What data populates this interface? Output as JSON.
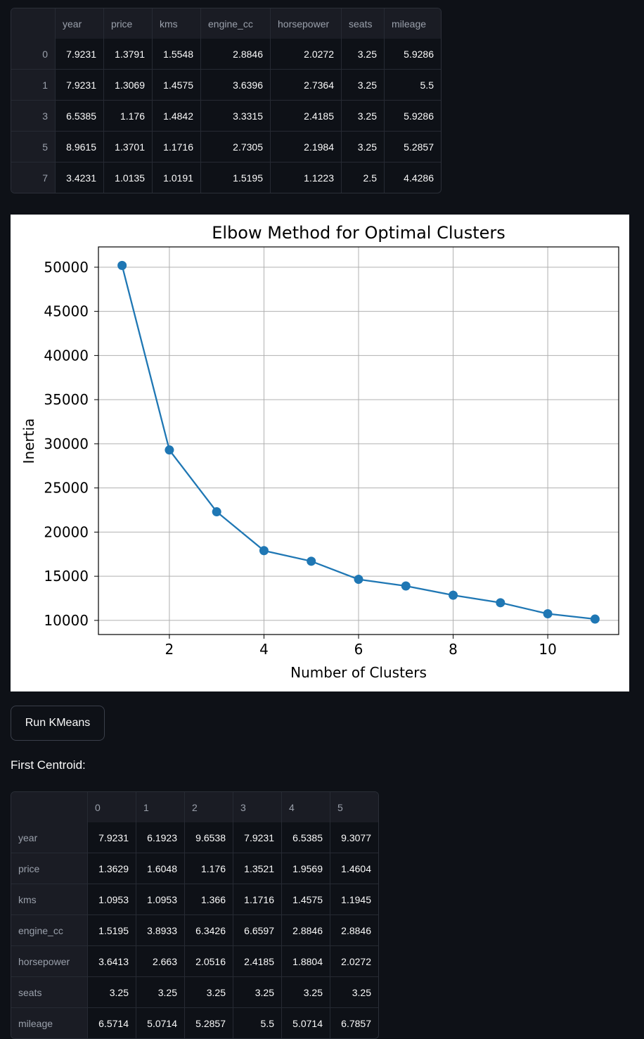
{
  "top_table": {
    "columns": [
      "",
      "year",
      "price",
      "kms",
      "engine_cc",
      "horsepower",
      "seats",
      "mileage"
    ],
    "rows": [
      {
        "index": "0",
        "cells": [
          "7.9231",
          "1.3791",
          "1.5548",
          "2.8846",
          "2.0272",
          "3.25",
          "5.9286"
        ]
      },
      {
        "index": "1",
        "cells": [
          "7.9231",
          "1.3069",
          "1.4575",
          "3.6396",
          "2.7364",
          "3.25",
          "5.5"
        ]
      },
      {
        "index": "3",
        "cells": [
          "6.5385",
          "1.176",
          "1.4842",
          "3.3315",
          "2.4185",
          "3.25",
          "5.9286"
        ]
      },
      {
        "index": "5",
        "cells": [
          "8.9615",
          "1.3701",
          "1.1716",
          "2.7305",
          "2.1984",
          "3.25",
          "5.2857"
        ]
      },
      {
        "index": "7",
        "cells": [
          "3.4231",
          "1.0135",
          "1.0191",
          "1.5195",
          "1.1223",
          "2.5",
          "4.4286"
        ]
      }
    ]
  },
  "chart_data": {
    "type": "line",
    "title": "Elbow Method for Optimal Clusters",
    "xlabel": "Number of Clusters",
    "ylabel": "Inertia",
    "x": [
      1,
      2,
      3,
      4,
      5,
      6,
      7,
      8,
      9,
      10,
      11
    ],
    "series": [
      {
        "values": [
          50200,
          29300,
          22300,
          17900,
          16700,
          14650,
          13900,
          12850,
          12000,
          10750,
          10150
        ]
      }
    ],
    "xlim": [
      0.5,
      11.5
    ],
    "ylim": [
      8400,
      52300
    ],
    "xticks": [
      2,
      4,
      6,
      8,
      10
    ],
    "yticks": [
      10000,
      15000,
      20000,
      25000,
      30000,
      35000,
      40000,
      45000,
      50000
    ],
    "grid": true,
    "line_color": "#1f77b4"
  },
  "run_button": {
    "label": "Run KMeans"
  },
  "centroid_label": "First Centroid:",
  "centroid_table": {
    "columns": [
      "",
      "0",
      "1",
      "2",
      "3",
      "4",
      "5"
    ],
    "rows": [
      {
        "index": "year",
        "cells": [
          "7.9231",
          "6.1923",
          "9.6538",
          "7.9231",
          "6.5385",
          "9.3077"
        ]
      },
      {
        "index": "price",
        "cells": [
          "1.3629",
          "1.6048",
          "1.176",
          "1.3521",
          "1.9569",
          "1.4604"
        ]
      },
      {
        "index": "kms",
        "cells": [
          "1.0953",
          "1.0953",
          "1.366",
          "1.1716",
          "1.4575",
          "1.1945"
        ]
      },
      {
        "index": "engine_cc",
        "cells": [
          "1.5195",
          "3.8933",
          "6.3426",
          "6.6597",
          "2.8846",
          "2.8846"
        ]
      },
      {
        "index": "horsepower",
        "cells": [
          "3.6413",
          "2.663",
          "2.0516",
          "2.4185",
          "1.8804",
          "2.0272"
        ]
      },
      {
        "index": "seats",
        "cells": [
          "3.25",
          "3.25",
          "3.25",
          "3.25",
          "3.25",
          "3.25"
        ]
      },
      {
        "index": "mileage",
        "cells": [
          "6.5714",
          "5.0714",
          "5.2857",
          "5.5",
          "5.0714",
          "6.7857"
        ]
      }
    ]
  }
}
